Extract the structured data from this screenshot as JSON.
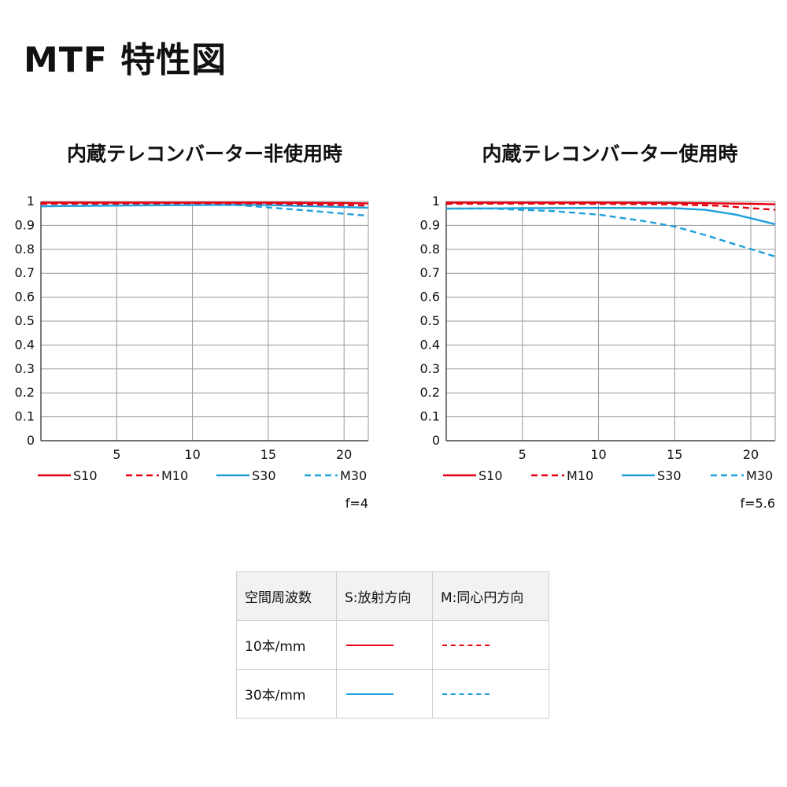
{
  "title": "MTF 特性図",
  "chart_data": [
    {
      "type": "line",
      "title": "内蔵テレコンバーター非使用時",
      "aperture_label": "f=4",
      "xlim": [
        0,
        21.6
      ],
      "ylim": [
        0,
        1
      ],
      "x_ticks": [
        "5",
        "10",
        "15",
        "20"
      ],
      "x_tick_values": [
        5,
        10,
        15,
        20
      ],
      "y_ticks": [
        "1",
        "0.9",
        "0.8",
        "0.7",
        "0.6",
        "0.5",
        "0.4",
        "0.3",
        "0.2",
        "0.1",
        "0"
      ],
      "y_tick_values": [
        1,
        0.9,
        0.8,
        0.7,
        0.6,
        0.5,
        0.4,
        0.3,
        0.2,
        0.1,
        0
      ],
      "grid": true,
      "legend_position": "bottom",
      "series": [
        {
          "name": "S10",
          "color": "#e60012",
          "dashed": false,
          "x": [
            0,
            5,
            10,
            15,
            20,
            21.6
          ],
          "y": [
            0.995,
            0.995,
            0.995,
            0.995,
            0.993,
            0.992
          ]
        },
        {
          "name": "M10",
          "color": "#e60012",
          "dashed": true,
          "x": [
            0,
            5,
            10,
            15,
            20,
            21.6
          ],
          "y": [
            0.99,
            0.991,
            0.993,
            0.991,
            0.985,
            0.983
          ]
        },
        {
          "name": "S30",
          "color": "#1fa0dc",
          "dashed": false,
          "x": [
            0,
            5,
            10,
            12,
            15,
            18,
            21.6
          ],
          "y": [
            0.98,
            0.983,
            0.985,
            0.986,
            0.985,
            0.98,
            0.974
          ]
        },
        {
          "name": "M30",
          "color": "#1fa0dc",
          "dashed": true,
          "x": [
            0,
            5,
            10,
            13,
            15,
            18,
            21.6
          ],
          "y": [
            0.98,
            0.984,
            0.986,
            0.985,
            0.975,
            0.96,
            0.94
          ]
        }
      ]
    },
    {
      "type": "line",
      "title": "内蔵テレコンバーター使用時",
      "aperture_label": "f=5.6",
      "xlim": [
        0,
        21.6
      ],
      "ylim": [
        0,
        1
      ],
      "x_ticks": [
        "5",
        "10",
        "15",
        "20"
      ],
      "x_tick_values": [
        5,
        10,
        15,
        20
      ],
      "y_ticks": [
        "1",
        "0.9",
        "0.8",
        "0.7",
        "0.6",
        "0.5",
        "0.4",
        "0.3",
        "0.2",
        "0.1",
        "0"
      ],
      "y_tick_values": [
        1,
        0.9,
        0.8,
        0.7,
        0.6,
        0.5,
        0.4,
        0.3,
        0.2,
        0.1,
        0
      ],
      "grid": true,
      "legend_position": "bottom",
      "series": [
        {
          "name": "S10",
          "color": "#e60012",
          "dashed": false,
          "x": [
            0,
            5,
            10,
            15,
            18,
            20,
            21.6
          ],
          "y": [
            0.995,
            0.995,
            0.995,
            0.994,
            0.992,
            0.99,
            0.988
          ]
        },
        {
          "name": "M10",
          "color": "#e60012",
          "dashed": true,
          "x": [
            0,
            5,
            10,
            15,
            18,
            20,
            21.6
          ],
          "y": [
            0.99,
            0.991,
            0.99,
            0.988,
            0.982,
            0.972,
            0.965
          ]
        },
        {
          "name": "S30",
          "color": "#1fa0dc",
          "dashed": false,
          "x": [
            0,
            5,
            10,
            15,
            17,
            19,
            20,
            21.6
          ],
          "y": [
            0.97,
            0.972,
            0.973,
            0.972,
            0.965,
            0.945,
            0.93,
            0.905
          ]
        },
        {
          "name": "M30",
          "color": "#1fa0dc",
          "dashed": true,
          "x": [
            0,
            3,
            7,
            10,
            13,
            15,
            17,
            19,
            21.6
          ],
          "y": [
            0.97,
            0.97,
            0.96,
            0.945,
            0.918,
            0.895,
            0.86,
            0.82,
            0.77
          ]
        }
      ]
    }
  ],
  "legend_key": {
    "headers": [
      "空間周波数",
      "S:放射方向",
      "M:同心円方向"
    ],
    "rows": [
      {
        "label": "10本/mm",
        "color": "#e60012"
      },
      {
        "label": "30本/mm",
        "color": "#1fa0dc"
      }
    ]
  }
}
